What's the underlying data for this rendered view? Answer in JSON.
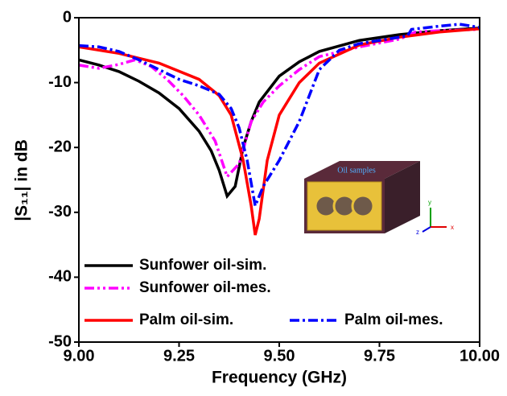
{
  "chart_data": {
    "type": "line",
    "xlabel": "Frequency (GHz)",
    "ylabel": "|S₁₁| in dB",
    "xlim": [
      9,
      10
    ],
    "ylim": [
      -50,
      0
    ],
    "xticks": [
      {
        "value": 9,
        "label": "9.00"
      },
      {
        "value": 9.25,
        "label": "9.25"
      },
      {
        "value": 9.5,
        "label": "9.50"
      },
      {
        "value": 9.75,
        "label": "9.75"
      },
      {
        "value": 10,
        "label": "10.00"
      }
    ],
    "yticks": [
      -50,
      -40,
      -30,
      -20,
      -10,
      0
    ],
    "inset_label": "Oil samples",
    "inset_axes": [
      "x",
      "y",
      "z"
    ],
    "series": [
      {
        "name": "Sunfower oil-sim.",
        "color": "#000000",
        "dash": "",
        "x": [
          9.0,
          9.05,
          9.1,
          9.15,
          9.2,
          9.25,
          9.3,
          9.33,
          9.35,
          9.37,
          9.39,
          9.41,
          9.43,
          9.45,
          9.5,
          9.55,
          9.6,
          9.7,
          9.8,
          9.9,
          10.0
        ],
        "values": [
          -6.5,
          -7.3,
          -8.3,
          -9.8,
          -11.6,
          -14.0,
          -17.5,
          -20.5,
          -23.5,
          -27.5,
          -26,
          -20,
          -16,
          -13,
          -9.0,
          -6.8,
          -5.2,
          -3.5,
          -2.6,
          -2.0,
          -1.6
        ]
      },
      {
        "name": "Sunfower oil-mes.",
        "color": "#ff00ff",
        "dash": "12 4 3 4 3 4",
        "x": [
          9.0,
          9.05,
          9.1,
          9.14,
          9.18,
          9.22,
          9.26,
          9.3,
          9.34,
          9.37,
          9.4,
          9.43,
          9.46,
          9.5,
          9.55,
          9.6,
          9.7,
          9.8,
          9.84,
          9.9,
          10.0
        ],
        "values": [
          -7.3,
          -7.8,
          -7.2,
          -6.5,
          -7.5,
          -9.5,
          -12,
          -15,
          -19,
          -24.5,
          -22.5,
          -16,
          -13,
          -10.5,
          -8,
          -6,
          -4.5,
          -3.3,
          -2.2,
          -2.0,
          -1.8
        ]
      },
      {
        "name": "Palm oil-sim.",
        "color": "#ff0000",
        "dash": "",
        "x": [
          9.0,
          9.1,
          9.2,
          9.3,
          9.35,
          9.38,
          9.41,
          9.43,
          9.44,
          9.45,
          9.47,
          9.5,
          9.55,
          9.6,
          9.7,
          9.8,
          9.9,
          10.0
        ],
        "values": [
          -4.5,
          -5.5,
          -7.0,
          -9.5,
          -12,
          -15,
          -22,
          -29,
          -33.5,
          -31,
          -22,
          -15,
          -10,
          -7,
          -4.2,
          -3,
          -2.2,
          -1.7
        ]
      },
      {
        "name": "Palm oil-mes.",
        "color": "#0000ff",
        "dash": "12 4 3 4",
        "x": [
          9.0,
          9.05,
          9.1,
          9.15,
          9.2,
          9.25,
          9.3,
          9.35,
          9.38,
          9.4,
          9.42,
          9.44,
          9.46,
          9.5,
          9.55,
          9.6,
          9.65,
          9.7,
          9.75,
          9.82,
          9.83,
          9.9,
          9.95,
          10.0
        ],
        "values": [
          -4.3,
          -4.5,
          -5.2,
          -6.5,
          -8,
          -9.5,
          -10.5,
          -11.8,
          -14,
          -17,
          -22,
          -29,
          -26,
          -22,
          -16,
          -8,
          -5,
          -4,
          -3.5,
          -2.8,
          -1.8,
          -1.3,
          -1.0,
          -1.5
        ]
      }
    ]
  }
}
